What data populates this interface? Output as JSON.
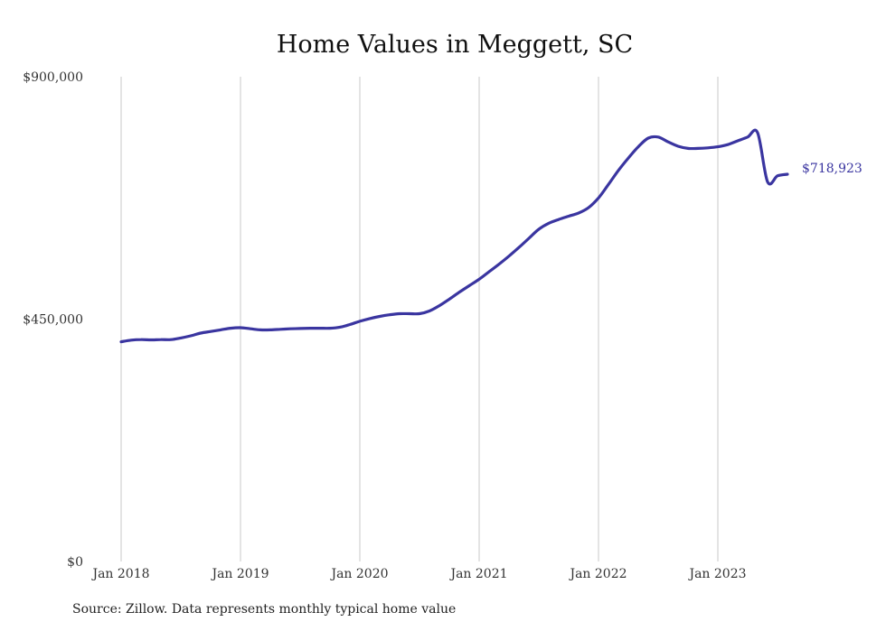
{
  "chart_data": {
    "type": "line",
    "title": "Home Values in Meggett, SC",
    "xlabel": "",
    "ylabel": "",
    "ylim": [
      0,
      900000
    ],
    "y_ticks": [
      {
        "value": 0,
        "label": "$0"
      },
      {
        "value": 450000,
        "label": "$450,000"
      },
      {
        "value": 900000,
        "label": "$900,000"
      }
    ],
    "x_ticks": [
      {
        "value": "2018-01",
        "label": "Jan 2018"
      },
      {
        "value": "2019-01",
        "label": "Jan 2019"
      },
      {
        "value": "2020-01",
        "label": "Jan 2020"
      },
      {
        "value": "2021-01",
        "label": "Jan 2021"
      },
      {
        "value": "2022-01",
        "label": "Jan 2022"
      },
      {
        "value": "2023-01",
        "label": "Jan 2023"
      }
    ],
    "grid": "vertical",
    "line_color": "#3a35a0",
    "series": [
      {
        "x": [
          "2018-01",
          "2018-02",
          "2018-03",
          "2018-04",
          "2018-05",
          "2018-06",
          "2018-07",
          "2018-08",
          "2018-09",
          "2018-10",
          "2018-11",
          "2018-12",
          "2019-01",
          "2019-02",
          "2019-03",
          "2019-04",
          "2019-05",
          "2019-06",
          "2019-07",
          "2019-08",
          "2019-09",
          "2019-10",
          "2019-11",
          "2019-12",
          "2020-01",
          "2020-02",
          "2020-03",
          "2020-04",
          "2020-05",
          "2020-06",
          "2020-07",
          "2020-08",
          "2020-09",
          "2020-10",
          "2020-11",
          "2020-12",
          "2021-01",
          "2021-02",
          "2021-03",
          "2021-04",
          "2021-05",
          "2021-06",
          "2021-07",
          "2021-08",
          "2021-09",
          "2021-10",
          "2021-11",
          "2021-12",
          "2022-01",
          "2022-02",
          "2022-03",
          "2022-04",
          "2022-05",
          "2022-06",
          "2022-07",
          "2022-08",
          "2022-09",
          "2022-10",
          "2022-11",
          "2022-12",
          "2023-01",
          "2023-02",
          "2023-03",
          "2023-04",
          "2023-05",
          "2023-06",
          "2023-07",
          "2023-08"
        ],
        "values": [
          408000,
          411000,
          412000,
          411500,
          412000,
          412000,
          415000,
          419000,
          424000,
          427000,
          430000,
          433000,
          434000,
          432000,
          430000,
          430000,
          431000,
          432000,
          432500,
          433000,
          433000,
          433000,
          435000,
          440000,
          446000,
          451000,
          455000,
          458000,
          460000,
          460000,
          460000,
          465000,
          475000,
          487000,
          500000,
          512000,
          524000,
          538000,
          552000,
          567000,
          583000,
          600000,
          617000,
          628000,
          635000,
          641000,
          647000,
          657000,
          675000,
          700000,
          726000,
          749000,
          770000,
          786000,
          788000,
          779000,
          771000,
          767000,
          767000,
          768000,
          770000,
          774000,
          781000,
          788000,
          796000,
          705000,
          716000,
          718923
        ],
        "end_label": "$718,923"
      }
    ],
    "source": "Source: Zillow. Data represents monthly typical home value"
  }
}
